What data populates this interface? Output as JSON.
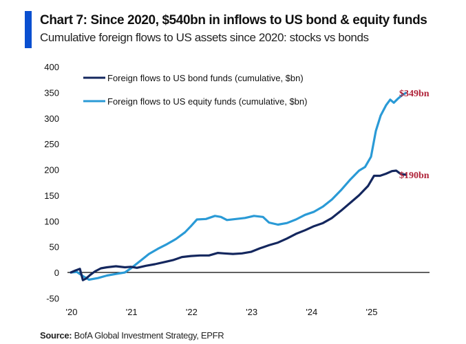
{
  "header": {
    "title": "Chart 7: Since 2020, $540bn in inflows to US bond & equity funds",
    "subtitle": "Cumulative foreign flows to US assets since 2020: stocks vs bonds"
  },
  "footer": {
    "source_label": "Source:",
    "source_text": " BofA Global Investment Strategy, EPFR"
  },
  "colors": {
    "accent": "#0a4fd0",
    "bond": "#14275e",
    "equity": "#2a9ad6",
    "end_label": "#b0243a",
    "zero_line": "#000000"
  },
  "chart_data": {
    "type": "line",
    "title": "Chart 7: Since 2020, $540bn in inflows to US bond & equity funds",
    "subtitle": "Cumulative foreign flows to US assets since 2020: stocks vs bonds",
    "xlabel": "",
    "ylabel": "",
    "xlim": [
      2020.0,
      2026.0
    ],
    "ylim": [
      -50,
      400
    ],
    "yticks": [
      -50,
      0,
      50,
      100,
      150,
      200,
      250,
      300,
      350,
      400
    ],
    "ytick_labels": [
      "-50",
      "0",
      "50",
      "100",
      "150",
      "200",
      "250",
      "300",
      "350",
      "400"
    ],
    "xticks": [
      2020,
      2021,
      2022,
      2023,
      2024,
      2025
    ],
    "xtick_labels": [
      "'20",
      "'21",
      "'22",
      "'23",
      "'24",
      "'25"
    ],
    "grid": false,
    "zero_line": true,
    "legend_position": "top-left",
    "series": [
      {
        "name": "Foreign flows to US bond funds (cumulative, $bn)",
        "key": "bond",
        "end_label": "$190bn",
        "x": [
          2020.0,
          2020.08,
          2020.15,
          2020.2,
          2020.25,
          2020.32,
          2020.4,
          2020.5,
          2020.6,
          2020.75,
          2020.9,
          2021.0,
          2021.1,
          2021.25,
          2021.4,
          2021.55,
          2021.7,
          2021.85,
          2022.0,
          2022.15,
          2022.3,
          2022.45,
          2022.55,
          2022.7,
          2022.85,
          2023.0,
          2023.15,
          2023.3,
          2023.45,
          2023.6,
          2023.75,
          2023.9,
          2024.05,
          2024.2,
          2024.35,
          2024.5,
          2024.65,
          2024.8,
          2024.95,
          2025.05,
          2025.15,
          2025.25,
          2025.35,
          2025.42,
          2025.5,
          2025.58
        ],
        "values": [
          0,
          4,
          7,
          -15,
          -12,
          -5,
          2,
          8,
          10,
          12,
          10,
          11,
          9,
          13,
          16,
          20,
          24,
          30,
          32,
          33,
          33,
          38,
          37,
          36,
          37,
          40,
          47,
          53,
          58,
          66,
          75,
          82,
          90,
          96,
          106,
          120,
          135,
          150,
          168,
          188,
          188,
          192,
          197,
          198,
          191,
          190
        ]
      },
      {
        "name": "Foreign flows to US equity funds (cumulative, $bn)",
        "key": "equity",
        "end_label": "$349bn",
        "x": [
          2020.0,
          2020.1,
          2020.2,
          2020.3,
          2020.45,
          2020.6,
          2020.75,
          2020.9,
          2021.0,
          2021.15,
          2021.3,
          2021.45,
          2021.6,
          2021.75,
          2021.9,
          2022.0,
          2022.1,
          2022.25,
          2022.4,
          2022.5,
          2022.6,
          2022.75,
          2022.9,
          2023.05,
          2023.2,
          2023.3,
          2023.45,
          2023.6,
          2023.75,
          2023.9,
          2024.05,
          2024.2,
          2024.35,
          2024.5,
          2024.65,
          2024.8,
          2024.9,
          2025.0,
          2025.08,
          2025.16,
          2025.25,
          2025.32,
          2025.38,
          2025.45,
          2025.52,
          2025.58
        ],
        "values": [
          0,
          1,
          -7,
          -14,
          -11,
          -6,
          -3,
          0,
          8,
          22,
          36,
          46,
          55,
          65,
          78,
          90,
          103,
          104,
          110,
          108,
          102,
          104,
          106,
          110,
          108,
          97,
          93,
          96,
          103,
          112,
          118,
          128,
          142,
          160,
          180,
          198,
          205,
          225,
          275,
          305,
          325,
          336,
          330,
          338,
          345,
          349
        ]
      }
    ]
  }
}
